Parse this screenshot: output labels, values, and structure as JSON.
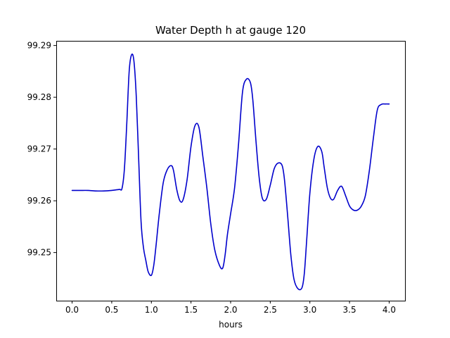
{
  "chart_data": {
    "type": "line",
    "title": "Water Depth h at gauge 120",
    "xlabel": "hours",
    "ylabel": "",
    "xlim": [
      -0.2,
      4.2
    ],
    "ylim": [
      99.2407,
      99.2909
    ],
    "x_ticks": [
      "0.0",
      "0.5",
      "1.0",
      "1.5",
      "2.0",
      "2.5",
      "3.0",
      "3.5",
      "4.0"
    ],
    "y_ticks": [
      "99.25",
      "99.26",
      "99.27",
      "99.28",
      "99.29"
    ],
    "grid": false,
    "legend": "none",
    "series": [
      {
        "color": "#0000cc",
        "x": [
          0.0,
          0.1,
          0.2,
          0.3,
          0.4,
          0.5,
          0.55,
          0.6,
          0.63,
          0.66,
          0.69,
          0.72,
          0.75,
          0.78,
          0.81,
          0.84,
          0.87,
          0.9,
          0.93,
          0.96,
          1.0,
          1.03,
          1.06,
          1.1,
          1.15,
          1.2,
          1.25,
          1.28,
          1.32,
          1.36,
          1.4,
          1.45,
          1.5,
          1.55,
          1.6,
          1.65,
          1.7,
          1.75,
          1.8,
          1.86,
          1.9,
          1.93,
          1.96,
          2.0,
          2.05,
          2.1,
          2.15,
          2.2,
          2.25,
          2.28,
          2.32,
          2.36,
          2.4,
          2.45,
          2.5,
          2.55,
          2.6,
          2.65,
          2.68,
          2.72,
          2.76,
          2.8,
          2.85,
          2.9,
          2.93,
          2.96,
          3.0,
          3.05,
          3.1,
          3.15,
          3.18,
          3.22,
          3.26,
          3.3,
          3.35,
          3.4,
          3.45,
          3.5,
          3.55,
          3.6,
          3.65,
          3.7,
          3.75,
          3.8,
          3.85,
          3.9,
          3.95,
          4.0
        ],
        "y": [
          99.262,
          99.262,
          99.262,
          99.2619,
          99.2619,
          99.262,
          99.2621,
          99.2622,
          99.2624,
          99.2662,
          99.275,
          99.285,
          99.2882,
          99.287,
          99.28,
          99.268,
          99.256,
          99.251,
          99.2485,
          99.2463,
          99.2456,
          99.2475,
          99.2515,
          99.2575,
          99.2635,
          99.266,
          99.2668,
          99.2658,
          99.2622,
          99.26,
          99.2602,
          99.264,
          99.2705,
          99.2745,
          99.2742,
          99.2685,
          99.2625,
          99.2555,
          99.2505,
          99.2475,
          99.247,
          99.2495,
          99.2535,
          99.2575,
          99.2625,
          99.271,
          99.281,
          99.2835,
          99.2828,
          99.2795,
          99.2715,
          99.2645,
          99.2605,
          99.2603,
          99.263,
          99.2662,
          99.2673,
          99.2668,
          99.264,
          99.257,
          99.2495,
          99.2448,
          99.243,
          99.2432,
          99.246,
          99.2525,
          99.2615,
          99.268,
          99.2705,
          99.2695,
          99.2665,
          99.2625,
          99.2605,
          99.2603,
          99.262,
          99.2628,
          99.261,
          99.259,
          99.2582,
          99.2582,
          99.259,
          99.261,
          99.2658,
          99.272,
          99.2775,
          99.2786,
          99.2787,
          99.2787
        ]
      }
    ]
  }
}
